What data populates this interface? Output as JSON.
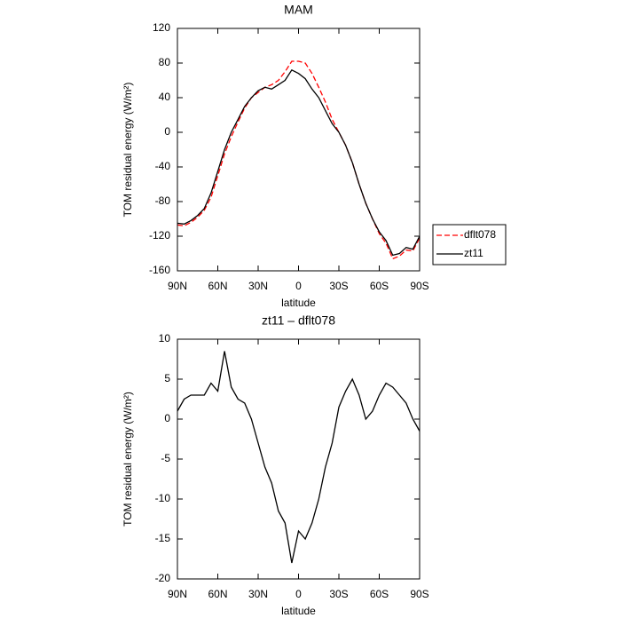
{
  "chart_data": [
    {
      "type": "line",
      "title": "MAM",
      "xlabel": "latitude",
      "ylabel": "TOM residual energy (W/m²)",
      "x": [
        90,
        85,
        80,
        75,
        70,
        65,
        60,
        55,
        50,
        45,
        40,
        35,
        30,
        25,
        20,
        15,
        10,
        5,
        0,
        -5,
        -10,
        -15,
        -20,
        -25,
        -30,
        -35,
        -40,
        -45,
        -50,
        -55,
        -60,
        -65,
        -70,
        -75,
        -80,
        -85,
        -90
      ],
      "series": [
        {
          "name": "dflt078",
          "color": "#ff0000",
          "dash": true,
          "values": [
            -107,
            -108,
            -104,
            -98,
            -90,
            -75,
            -50,
            -25,
            -5,
            12,
            28,
            40,
            46,
            52,
            55,
            60,
            70,
            82,
            82,
            80,
            68,
            52,
            35,
            15,
            0,
            -15,
            -35,
            -60,
            -82,
            -100,
            -117,
            -128,
            -146,
            -143,
            -136,
            -137,
            -122
          ]
        },
        {
          "name": "zt11",
          "color": "#000000",
          "dash": false,
          "values": [
            -105,
            -106,
            -102,
            -96,
            -88,
            -70,
            -45,
            -20,
            0,
            15,
            30,
            40,
            48,
            52,
            50,
            55,
            60,
            72,
            68,
            62,
            50,
            40,
            25,
            10,
            0,
            -15,
            -35,
            -60,
            -82,
            -100,
            -115,
            -125,
            -142,
            -140,
            -133,
            -135,
            -120
          ]
        }
      ],
      "xlim": [
        90,
        -90
      ],
      "xticks": [
        {
          "value": 90,
          "label": "90N"
        },
        {
          "value": 60,
          "label": "60N"
        },
        {
          "value": 30,
          "label": "30N"
        },
        0,
        {
          "value": -30,
          "label": "30S"
        },
        {
          "value": -60,
          "label": "60S"
        },
        {
          "value": -90,
          "label": "90S"
        }
      ],
      "ylim": [
        -160,
        120
      ],
      "yticks": [
        -160,
        -120,
        -80,
        -40,
        0,
        40,
        80,
        120
      ],
      "legend": "right"
    },
    {
      "type": "line",
      "title": "zt11 – dflt078",
      "xlabel": "latitude",
      "ylabel": "TOM residual energy (W/m²)",
      "x": [
        90,
        85,
        80,
        75,
        70,
        65,
        60,
        55,
        50,
        45,
        40,
        35,
        30,
        25,
        20,
        15,
        10,
        5,
        0,
        -5,
        -10,
        -15,
        -20,
        -25,
        -30,
        -35,
        -40,
        -45,
        -50,
        -55,
        -60,
        -65,
        -70,
        -75,
        -80,
        -85,
        -90
      ],
      "series": [
        {
          "color": "#000000",
          "values": [
            1,
            2.5,
            3,
            3,
            3,
            4.5,
            3.5,
            8.5,
            4,
            2.5,
            2,
            0,
            -3,
            -6,
            -8,
            -11.5,
            -13,
            -18,
            -14,
            -15,
            -13,
            -10,
            -6,
            -3,
            1.5,
            3.5,
            5,
            3,
            0,
            1,
            3,
            4.5,
            4,
            3,
            2,
            0,
            -1.5
          ]
        }
      ],
      "xlim": [
        90,
        -90
      ],
      "xticks": [
        {
          "value": 90,
          "label": "90N"
        },
        {
          "value": 60,
          "label": "60N"
        },
        {
          "value": 30,
          "label": "30N"
        },
        0,
        {
          "value": -30,
          "label": "30S"
        },
        {
          "value": -60,
          "label": "60S"
        },
        {
          "value": -90,
          "label": "90S"
        }
      ],
      "ylim": [
        -20,
        10
      ],
      "yticks": [
        -20,
        -15,
        -10,
        -5,
        0,
        5,
        10
      ]
    }
  ]
}
